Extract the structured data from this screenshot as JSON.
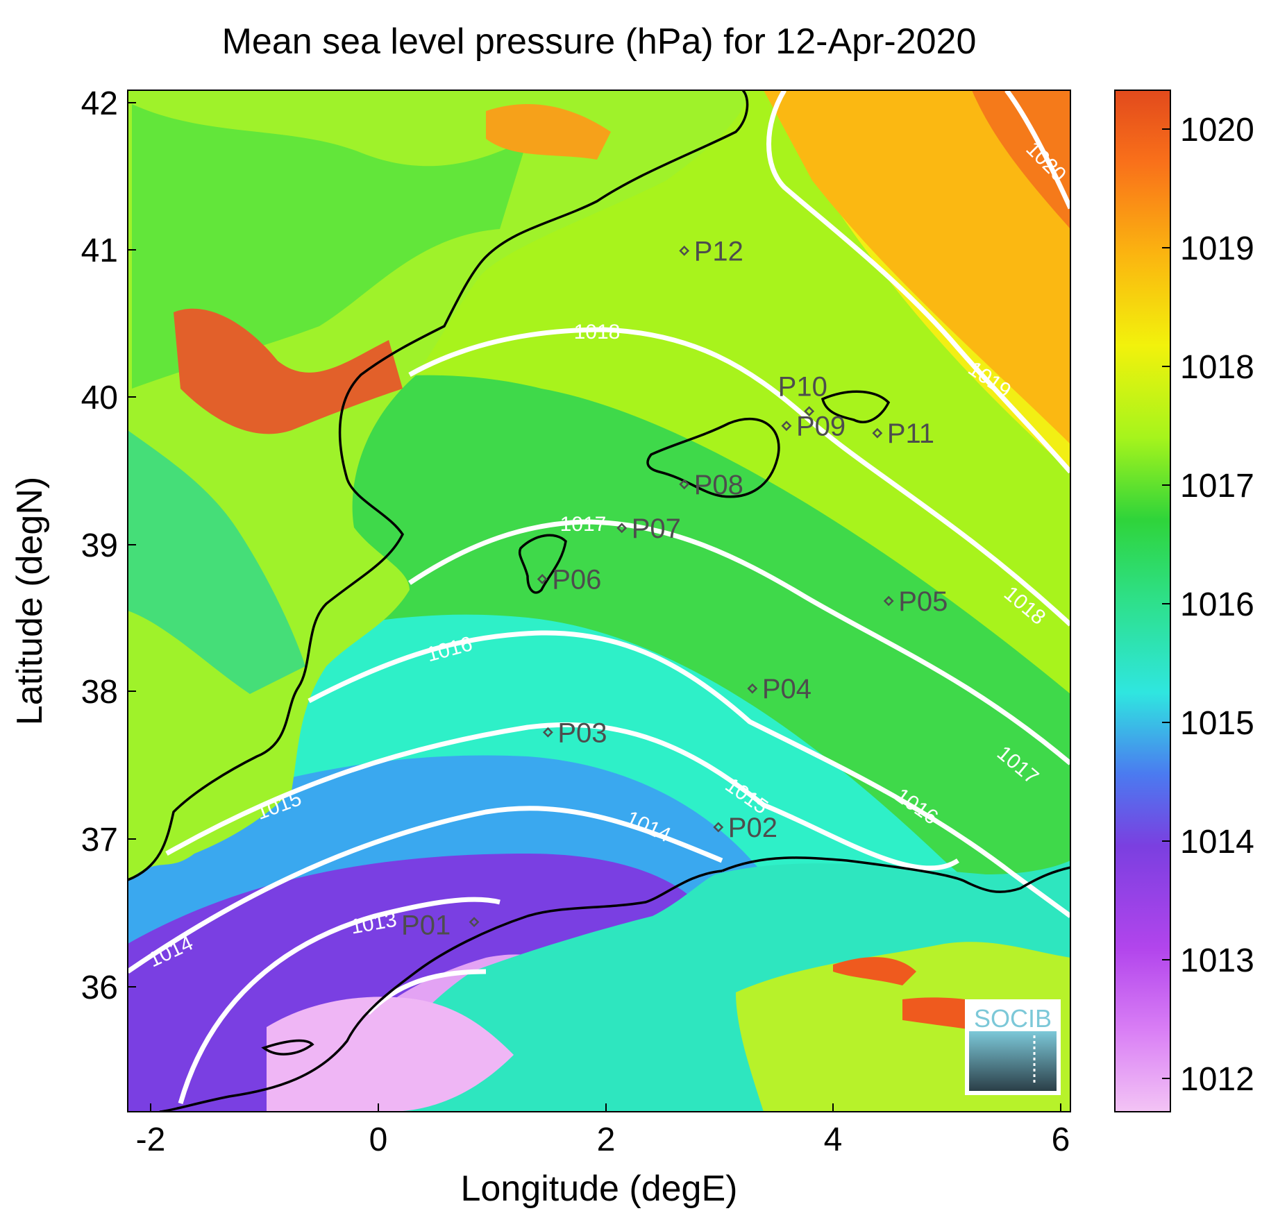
{
  "title": "Mean sea level pressure (hPa) for 12-Apr-2020",
  "x_axis": {
    "label": "Longitude (degE)",
    "ticks": [
      "-2",
      "0",
      "2",
      "4",
      "6"
    ],
    "range": [
      -2.2,
      6.1
    ]
  },
  "y_axis": {
    "label": "Latitude (degN)",
    "ticks": [
      "36",
      "37",
      "38",
      "39",
      "40",
      "41",
      "42"
    ],
    "range": [
      35.2,
      42.2
    ]
  },
  "colorbar": {
    "ticks": [
      "1012",
      "1013",
      "1014",
      "1015",
      "1016",
      "1017",
      "1018",
      "1019",
      "1020"
    ],
    "range": [
      1011.7,
      1020.3
    ],
    "colors": [
      "#f3c4f5",
      "#c44ef0",
      "#7b3fe0",
      "#4b7af0",
      "#2fe6e0",
      "#2ee08a",
      "#2fd43a",
      "#a6f41c",
      "#f2f20c",
      "#fbb410",
      "#f9701a",
      "#e24a1c"
    ]
  },
  "contour_labels": [
    "1013",
    "1014",
    "1014",
    "1015",
    "1016",
    "1016",
    "1017",
    "1017",
    "1018",
    "1018",
    "1019",
    "1020",
    "1015"
  ],
  "points": [
    {
      "name": "P01",
      "lon": 0.85,
      "lat": 36.5
    },
    {
      "name": "P02",
      "lon": 3.0,
      "lat": 37.15
    },
    {
      "name": "P03",
      "lon": 1.5,
      "lat": 37.8
    },
    {
      "name": "P04",
      "lon": 3.3,
      "lat": 38.1
    },
    {
      "name": "P05",
      "lon": 4.5,
      "lat": 38.7
    },
    {
      "name": "P06",
      "lon": 1.45,
      "lat": 38.85
    },
    {
      "name": "P07",
      "lon": 2.15,
      "lat": 39.2
    },
    {
      "name": "P08",
      "lon": 2.7,
      "lat": 39.5
    },
    {
      "name": "P09",
      "lon": 3.6,
      "lat": 39.9
    },
    {
      "name": "P10",
      "lon": 3.8,
      "lat": 40.0
    },
    {
      "name": "P11",
      "lon": 4.4,
      "lat": 39.85
    },
    {
      "name": "P12",
      "lon": 2.7,
      "lat": 41.1
    }
  ],
  "logo": {
    "text": "SOCIB"
  }
}
